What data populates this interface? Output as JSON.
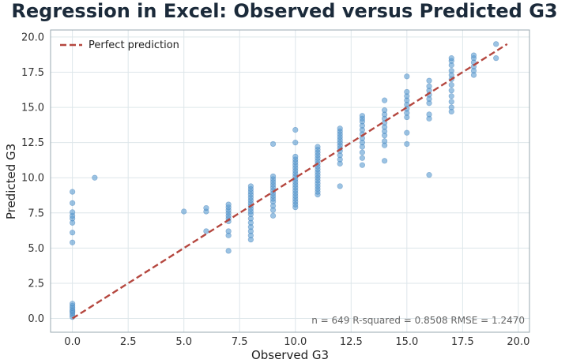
{
  "chart_data": {
    "type": "scatter",
    "title": "Regression in Excel: Observed versus Predicted G3",
    "xlabel": "Observed G3",
    "ylabel": "Predicted G3",
    "xlim": [
      -0.98,
      20.5
    ],
    "ylim": [
      -0.98,
      20.5
    ],
    "xticks": [
      0.0,
      2.5,
      5.0,
      7.5,
      10.0,
      12.5,
      15.0,
      17.5,
      20.0
    ],
    "yticks": [
      0.0,
      2.5,
      5.0,
      7.5,
      10.0,
      12.5,
      15.0,
      17.5,
      20.0
    ],
    "xtick_labels": [
      "0.0",
      "2.5",
      "5.0",
      "7.5",
      "10.0",
      "12.5",
      "15.0",
      "17.5",
      "20.0"
    ],
    "ytick_labels": [
      "0.0",
      "2.5",
      "5.0",
      "7.5",
      "10.0",
      "12.5",
      "15.0",
      "17.5",
      "20.0"
    ],
    "grid": true,
    "legend": {
      "position": "top-left",
      "entries": [
        "Perfect prediction"
      ]
    },
    "reference_line": {
      "name": "Perfect prediction",
      "x": [
        0,
        19.5
      ],
      "y": [
        0,
        19.5
      ],
      "color": "#b5473f",
      "style": "dashed"
    },
    "stats": "n = 649   R-squared = 0.8508   RMSE = 1.2470",
    "point_color": "#5a9bd0",
    "point_groups": [
      {
        "x": 0,
        "y": [
          0.1,
          0.25,
          0.4,
          0.5,
          0.6,
          0.75,
          0.9,
          1.05,
          5.4,
          6.1,
          6.8,
          7.1,
          7.3,
          7.55,
          8.2,
          9.0
        ]
      },
      {
        "x": 1,
        "y": [
          10.0
        ]
      },
      {
        "x": 5,
        "y": [
          7.6
        ]
      },
      {
        "x": 6,
        "y": [
          6.2,
          7.6,
          7.85
        ]
      },
      {
        "x": 7,
        "y": [
          4.8,
          5.9,
          6.2,
          6.9,
          7.1,
          7.3,
          7.5,
          7.7,
          7.9,
          8.1
        ]
      },
      {
        "x": 8,
        "y": [
          5.6,
          5.9,
          6.2,
          6.5,
          6.8,
          7.1,
          7.4,
          7.6,
          7.8,
          8.0,
          8.2,
          8.4,
          8.6,
          8.8,
          9.0,
          9.2,
          9.4
        ]
      },
      {
        "x": 9,
        "y": [
          7.3,
          7.7,
          8.0,
          8.3,
          8.5,
          8.7,
          8.9,
          9.1,
          9.3,
          9.5,
          9.7,
          9.9,
          10.1,
          12.4
        ]
      },
      {
        "x": 10,
        "y": [
          7.9,
          8.1,
          8.3,
          8.5,
          8.7,
          8.9,
          9.1,
          9.3,
          9.5,
          9.7,
          9.9,
          10.1,
          10.3,
          10.5,
          10.7,
          10.9,
          11.1,
          11.3,
          11.5,
          12.5,
          13.4
        ]
      },
      {
        "x": 11,
        "y": [
          8.8,
          9.0,
          9.2,
          9.4,
          9.6,
          9.8,
          10.0,
          10.2,
          10.4,
          10.6,
          10.8,
          11.0,
          11.2,
          11.4,
          11.6,
          11.8,
          12.0,
          12.2
        ]
      },
      {
        "x": 12,
        "y": [
          9.4,
          11.0,
          11.3,
          11.6,
          11.9,
          12.1,
          12.3,
          12.5,
          12.7,
          12.9,
          13.1,
          13.3,
          13.5
        ]
      },
      {
        "x": 13,
        "y": [
          10.9,
          11.4,
          11.8,
          12.2,
          12.5,
          12.8,
          13.1,
          13.4,
          13.7,
          14.0,
          14.2,
          14.4
        ]
      },
      {
        "x": 14,
        "y": [
          11.2,
          12.3,
          12.6,
          13.0,
          13.3,
          13.6,
          13.9,
          14.2,
          14.5,
          14.8,
          15.5
        ]
      },
      {
        "x": 15,
        "y": [
          12.4,
          13.2,
          14.3,
          14.6,
          14.9,
          15.2,
          15.5,
          15.8,
          16.1,
          17.2
        ]
      },
      {
        "x": 16,
        "y": [
          10.2,
          14.2,
          14.5,
          15.3,
          15.6,
          15.9,
          16.2,
          16.5,
          16.9
        ]
      },
      {
        "x": 17,
        "y": [
          14.7,
          15.0,
          15.4,
          15.8,
          16.2,
          16.6,
          17.0,
          17.3,
          17.6,
          18.0,
          18.3,
          18.5
        ]
      },
      {
        "x": 18,
        "y": [
          17.3,
          17.6,
          17.9,
          18.2,
          18.5,
          18.7
        ]
      },
      {
        "x": 19,
        "y": [
          18.5,
          19.5
        ]
      }
    ]
  }
}
